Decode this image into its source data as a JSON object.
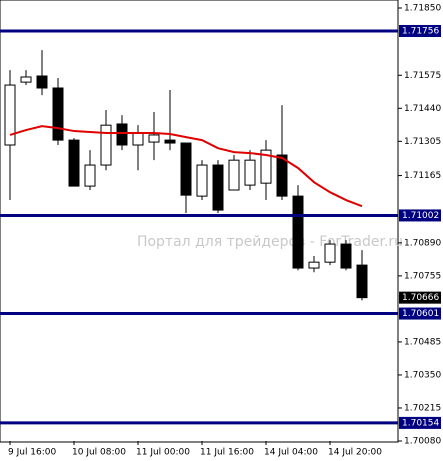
{
  "chart_data": {
    "type": "candlestick",
    "watermark": "Портал для трейдеров - ForTrader.ru",
    "categories": [
      "9 Jul 16:00",
      null,
      null,
      null,
      "10 Jul 08:00",
      null,
      null,
      null,
      "11 Jul 00:00",
      null,
      null,
      null,
      "11 Jul 16:00",
      null,
      null,
      null,
      "14 Jul 04:00",
      null,
      null,
      null,
      "14 Jul 20:00",
      null,
      null
    ],
    "open": [
      1.7129,
      1.71547,
      1.71572,
      1.71523,
      1.7131,
      1.71122,
      1.71208,
      1.71376,
      1.7129,
      1.71302,
      1.7131,
      1.71298,
      1.71081,
      1.71208,
      1.71106,
      1.71126,
      1.71134,
      1.71249,
      1.71081,
      1.70787,
      1.70811,
      1.70885,
      1.70799
    ],
    "high": [
      1.71596,
      1.71596,
      1.71678,
      1.71564,
      1.71318,
      1.71269,
      1.71433,
      1.71412,
      1.71371,
      1.71425,
      1.71515,
      1.71298,
      1.71228,
      1.71228,
      1.71249,
      1.71269,
      1.7131,
      1.71453,
      1.71126,
      1.70836,
      1.70901,
      1.70901,
      1.7086
    ],
    "low": [
      1.71065,
      1.71535,
      1.71494,
      1.7129,
      1.71122,
      1.71106,
      1.71187,
      1.71269,
      1.71187,
      1.71228,
      1.71269,
      1.71012,
      1.71065,
      1.71012,
      1.71106,
      1.71106,
      1.71065,
      1.71065,
      1.70778,
      1.7077,
      1.70799,
      1.70778,
      1.70655
    ],
    "close": [
      1.71535,
      1.71568,
      1.71523,
      1.7131,
      1.71122,
      1.71208,
      1.71371,
      1.7129,
      1.71339,
      1.71331,
      1.71298,
      1.71085,
      1.71208,
      1.71024,
      1.71228,
      1.71228,
      1.71269,
      1.71081,
      1.70787,
      1.70811,
      1.70885,
      1.70787,
      1.70666
    ],
    "ma": {
      "color": "#e00000",
      "values": [
        1.71331,
        1.71351,
        1.71367,
        1.71359,
        1.71347,
        1.71343,
        1.71339,
        1.71339,
        1.71339,
        1.71339,
        1.71335,
        1.71322,
        1.7131,
        1.71277,
        1.71261,
        1.71257,
        1.71249,
        1.71237,
        1.71196,
        1.71138,
        1.71097,
        1.71065,
        1.7104
      ]
    },
    "levels": [
      1.71756,
      1.71002,
      1.70601,
      1.70154
    ],
    "level_color": "#000080",
    "current_price": 1.70666,
    "ylim": [
      1.7008,
      1.7185
    ],
    "yticks": [
      {
        "value": 1.7185,
        "label": "1.71850"
      },
      1.71575,
      {
        "value": 1.7144,
        "label": "1.71440"
      },
      1.71305,
      1.71165,
      {
        "value": 1.7089,
        "label": "1.70890"
      },
      1.70755,
      1.70485,
      {
        "value": 1.7035,
        "label": "1.70350"
      },
      1.70215,
      {
        "value": 1.7008,
        "label": "1.70080"
      }
    ]
  }
}
